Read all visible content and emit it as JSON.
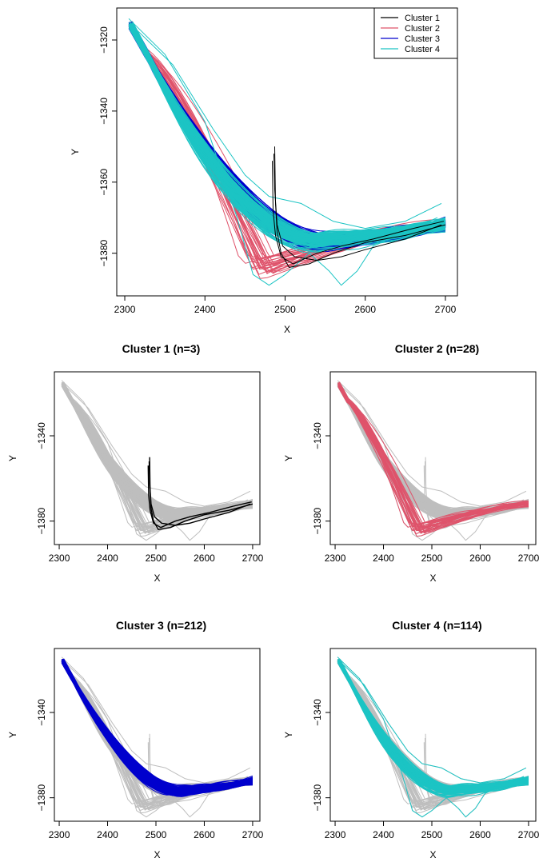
{
  "chart_data": [
    {
      "type": "line",
      "panel": "overview",
      "title": "",
      "xlabel": "X",
      "ylabel": "Y",
      "xlim": [
        2290,
        2715
      ],
      "ylim": [
        1392,
        1311
      ],
      "xticks": [
        2300,
        2400,
        2500,
        2600,
        2700
      ],
      "yticks": [
        -1320,
        -1340,
        -1360,
        -1380
      ],
      "legend": {
        "position": "top-right",
        "entries": [
          {
            "label": "Cluster 1",
            "color": "#000000"
          },
          {
            "label": "Cluster 2",
            "color": "#DF536B"
          },
          {
            "label": "Cluster 3",
            "color": "#0000CD"
          },
          {
            "label": "Cluster 4",
            "color": "#1CC4C4"
          }
        ]
      },
      "series": [
        {
          "name": "Cluster 1",
          "color": "#000000",
          "count": 3
        },
        {
          "name": "Cluster 2",
          "color": "#DF536B",
          "count": 28
        },
        {
          "name": "Cluster 3",
          "color": "#0000CD",
          "count": 212
        },
        {
          "name": "Cluster 4",
          "color": "#1CC4C4",
          "count": 114
        }
      ]
    },
    {
      "type": "line",
      "panel": "cluster-1",
      "title": "Cluster 1 (n=3)",
      "xlabel": "X",
      "ylabel": "Y",
      "xlim": [
        2290,
        2715
      ],
      "ylim": [
        1391,
        1310
      ],
      "xticks": [
        2300,
        2400,
        2500,
        2600,
        2700
      ],
      "yticks": [
        -1340,
        -1380
      ],
      "highlight_color": "#000000",
      "background_color": "#BEBEBE"
    },
    {
      "type": "line",
      "panel": "cluster-2",
      "title": "Cluster 2 (n=28)",
      "xlabel": "X",
      "ylabel": "Y",
      "xlim": [
        2290,
        2715
      ],
      "ylim": [
        1391,
        1310
      ],
      "xticks": [
        2300,
        2400,
        2500,
        2600,
        2700
      ],
      "yticks": [
        -1340,
        -1380
      ],
      "highlight_color": "#DF536B",
      "background_color": "#BEBEBE"
    },
    {
      "type": "line",
      "panel": "cluster-3",
      "title": "Cluster 3 (n=212)",
      "xlabel": "X",
      "ylabel": "Y",
      "xlim": [
        2290,
        2715
      ],
      "ylim": [
        1391,
        1310
      ],
      "xticks": [
        2300,
        2400,
        2500,
        2600,
        2700
      ],
      "yticks": [
        -1340,
        -1380
      ],
      "highlight_color": "#0000CD",
      "background_color": "#BEBEBE"
    },
    {
      "type": "line",
      "panel": "cluster-4",
      "title": "Cluster 4 (n=114)",
      "xlabel": "X",
      "ylabel": "Y",
      "xlim": [
        2290,
        2715
      ],
      "ylim": [
        1391,
        1310
      ],
      "xticks": [
        2300,
        2400,
        2500,
        2600,
        2700
      ],
      "yticks": [
        -1340,
        -1380
      ],
      "highlight_color": "#1CC4C4",
      "background_color": "#BEBEBE"
    }
  ]
}
